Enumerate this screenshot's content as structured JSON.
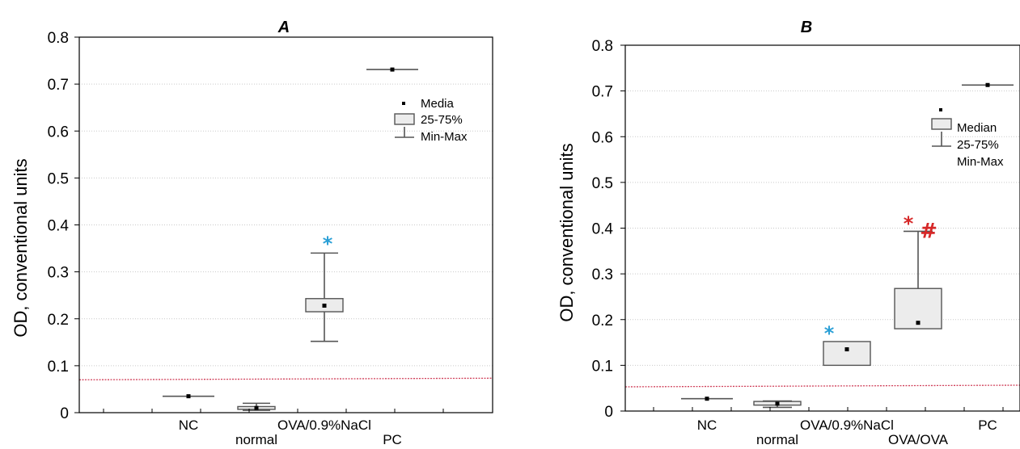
{
  "chart_data": [
    {
      "type": "box",
      "title": "A",
      "ylabel": "OD, conventional units",
      "ylim": [
        0,
        0.8
      ],
      "yticks": [
        "0",
        "0.1",
        "0.2",
        "0.3",
        "0.4",
        "0.5",
        "0.6",
        "0.7",
        "0.8"
      ],
      "categories": [
        "NC",
        "normal",
        "OVA/0.9%NaCl",
        "PC"
      ],
      "category_slots": [
        1,
        2,
        3,
        4
      ],
      "xlim": [
        -1.4,
        6.5
      ],
      "threshold": 0.07,
      "boxes": [
        {
          "category": "NC",
          "median": 0.035,
          "q1": 0.035,
          "q3": 0.035,
          "min": 0.035,
          "max": 0.035
        },
        {
          "category": "normal",
          "median": 0.01,
          "q1": 0.007,
          "q3": 0.013,
          "min": 0.005,
          "max": 0.02
        },
        {
          "category": "OVA/0.9%NaCl",
          "median": 0.228,
          "q1": 0.215,
          "q3": 0.243,
          "min": 0.152,
          "max": 0.34
        },
        {
          "category": "PC",
          "median": 0.731,
          "q1": 0.731,
          "q3": 0.731,
          "min": 0.731,
          "max": 0.731
        }
      ],
      "annotations": [
        {
          "text": "*",
          "at": 3,
          "y": 0.37,
          "color": "#2a9fd6"
        }
      ],
      "legend": {
        "median": "Media",
        "box": "25-75%",
        "whisker": "Min-Max",
        "position": "top-right"
      }
    },
    {
      "type": "box",
      "title": "B",
      "ylabel": "OD, conventional units",
      "ylim": [
        0,
        0.8
      ],
      "yticks": [
        "0",
        "0.1",
        "0.2",
        "0.3",
        "0.4",
        "0.5",
        "0.6",
        "0.7",
        "0.8"
      ],
      "categories": [
        "NC",
        "normal",
        "OVA/0.9%NaCl",
        "OVA/OVA",
        "PC"
      ],
      "category_slots": [
        1,
        2,
        3,
        4,
        5
      ],
      "xlim": [
        -0.7,
        7.4
      ],
      "threshold": 0.053,
      "boxes": [
        {
          "category": "NC",
          "median": 0.027,
          "q1": 0.027,
          "q3": 0.027,
          "min": 0.027,
          "max": 0.027
        },
        {
          "category": "normal",
          "median": 0.016,
          "q1": 0.013,
          "q3": 0.021,
          "min": 0.008,
          "max": 0.022
        },
        {
          "category": "OVA/0.9%NaCl",
          "median": 0.135,
          "q1": 0.1,
          "q3": 0.152,
          "min": 0.1,
          "max": 0.152
        },
        {
          "category": "OVA/OVA",
          "median": 0.193,
          "q1": 0.18,
          "q3": 0.268,
          "min": 0.18,
          "max": 0.393
        },
        {
          "category": "PC",
          "median": 0.713,
          "q1": 0.713,
          "q3": 0.713,
          "min": 0.713,
          "max": 0.713
        }
      ],
      "annotations": [
        {
          "text": "*",
          "at": 3,
          "y": 0.18,
          "color": "#2a9fd6"
        },
        {
          "text": "*",
          "at": 4.5,
          "y": 0.42,
          "color": "#d62828"
        },
        {
          "text": "#",
          "at": 4.9,
          "y": 0.4,
          "color": "#d62828"
        }
      ],
      "legend": {
        "median": "Median",
        "box": "25-75%",
        "whisker": "Min-Max",
        "position": "top-right"
      }
    }
  ]
}
